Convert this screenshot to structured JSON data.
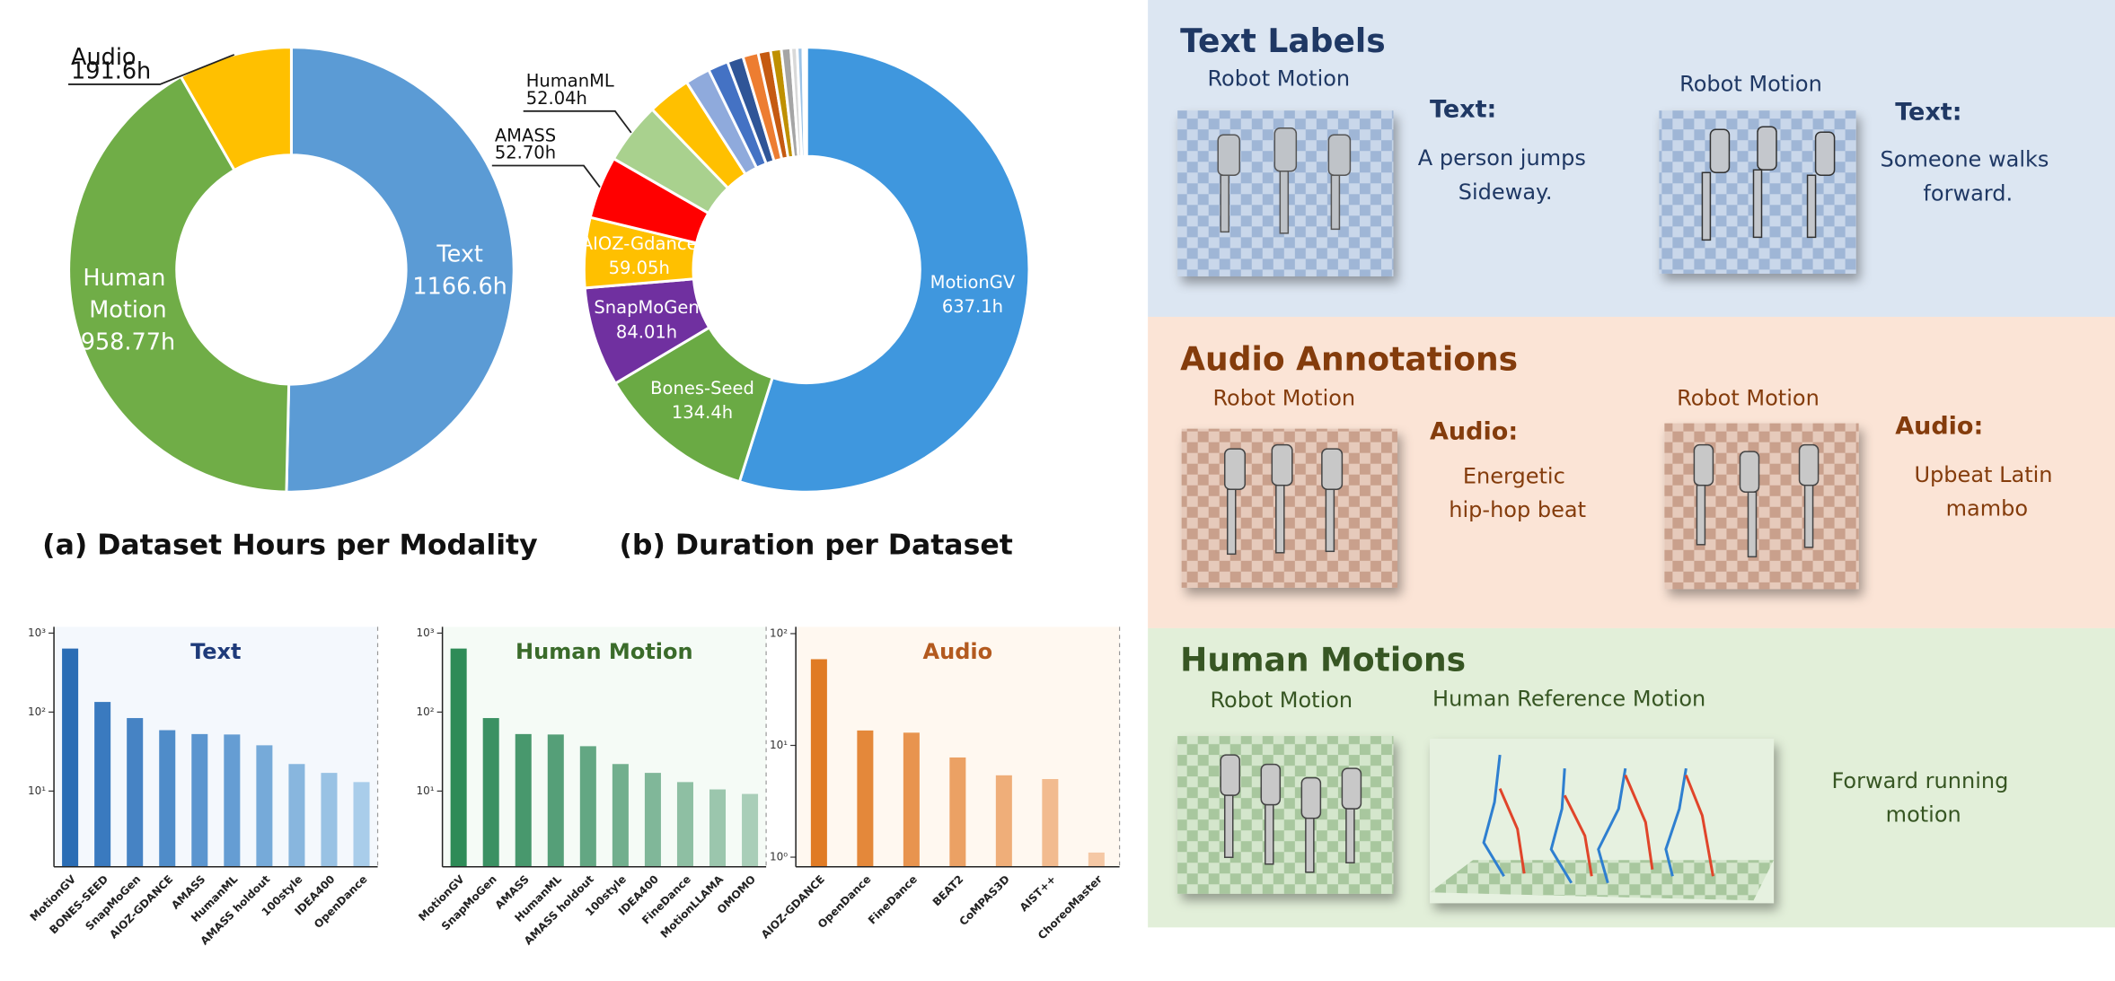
{
  "chart_data": [
    {
      "type": "donut",
      "title": "(a) Dataset Hours per Modality",
      "categories": [
        "Text",
        "Human Motion",
        "Audio"
      ],
      "values": [
        1166.6,
        958.77,
        191.6
      ],
      "value_labels": [
        "1166.6h",
        "958.77h",
        "191.6h"
      ],
      "colors": [
        "#5b9bd5",
        "#70ad47",
        "#ffc000"
      ]
    },
    {
      "type": "donut",
      "title": "(b) Duration per Dataset",
      "categories": [
        "MotionGV",
        "Bones-Seed",
        "SnapMoGen",
        "AIOZ-Gdance",
        "AMASS",
        "HumanML",
        null,
        null,
        null,
        null,
        null,
        null,
        null,
        null,
        null,
        null,
        null,
        null
      ],
      "values": [
        637.1,
        134.4,
        84.01,
        59.05,
        52.7,
        52.04,
        36.5,
        21,
        17,
        13.5,
        13,
        10.5,
        9,
        8,
        5.3,
        4.8,
        2,
        1.1
      ],
      "value_labels": [
        "637.1h",
        "134.4h",
        "84.01h",
        "59.05h",
        "52.70h",
        "52.04h",
        null,
        null,
        null,
        null,
        null,
        null,
        null,
        null,
        null,
        null,
        null,
        null
      ],
      "colors": [
        "#3f97de",
        "#6aaa44",
        "#7030a0",
        "#ffc000",
        "#ff0000",
        "#a9d18e",
        "#ffc000",
        "#8faadc",
        "#4472c4",
        "#2f5597",
        "#ed7d31",
        "#c55a11",
        "#bf9000",
        "#a5a5a5",
        "#d9d9d9",
        "#9dc3e6",
        "#1f4e79",
        "#548235"
      ]
    },
    {
      "type": "bar",
      "title": "Text",
      "log_scale": true,
      "title_color": "#1f3b7a",
      "background": "#f4f8fd",
      "categories": [
        "MotionGV",
        "BONES-SEED",
        "SnapMoGen",
        "AIOZ-GDANCE",
        "AMASS",
        "HumanML",
        "AMASS holdout",
        "100style",
        "IDEA400",
        "OpenDance"
      ],
      "values": [
        637.1,
        134.4,
        84.01,
        59.05,
        52.7,
        52.04,
        38,
        22,
        17,
        13
      ],
      "colors": [
        "#2a6db5",
        "#3a7abf",
        "#4683c4",
        "#4f8cc9",
        "#5b95cf",
        "#659dd3",
        "#76aad9",
        "#88b6de",
        "#99c2e4",
        "#a9cdea"
      ],
      "ylim": [
        1.1,
        1200
      ],
      "yticks": [
        {
          "value": 10,
          "label": "10¹"
        },
        {
          "value": 100,
          "label": "10²"
        },
        {
          "value": 1000,
          "label": "10³"
        }
      ]
    },
    {
      "type": "bar",
      "title": "Human Motion",
      "log_scale": true,
      "title_color": "#3a6b2a",
      "background": "#f5fbf6",
      "categories": [
        "MotionGV",
        "SnapMoGen",
        "AMASS",
        "HumanML",
        "AMASS holdout",
        "100style",
        "IDEA400",
        "FineDance",
        "MotionLLAMA",
        "OMOMO"
      ],
      "values": [
        637.1,
        84.01,
        52.7,
        52.04,
        37,
        22,
        17,
        13,
        10.5,
        9.2
      ],
      "colors": [
        "#2e8b57",
        "#3b9163",
        "#48986d",
        "#559f78",
        "#63a783",
        "#72af8e",
        "#80b799",
        "#8ebfa3",
        "#9bc6ad",
        "#a9ceb8"
      ],
      "ylim": [
        1.1,
        1200
      ],
      "yticks": [
        {
          "value": 10,
          "label": "10¹"
        },
        {
          "value": 100,
          "label": "10²"
        },
        {
          "value": 1000,
          "label": "10³"
        }
      ]
    },
    {
      "type": "bar",
      "title": "Audio",
      "log_scale": true,
      "title_color": "#b35a1f",
      "background": "#fff8f0",
      "categories": [
        "AIOZ-GDANCE",
        "OpenDance",
        "FineDance",
        "BEAT2",
        "CoMPAS3D",
        "AIST++",
        "ChoreoMaster"
      ],
      "values": [
        59.05,
        13.6,
        13,
        7.8,
        5.4,
        5.0,
        1.1
      ],
      "colors": [
        "#e07b24",
        "#e4883a",
        "#e8944f",
        "#eba164",
        "#efae79",
        "#f2bb8f",
        "#f5c8a5"
      ],
      "ylim": [
        0.82,
        115
      ],
      "yticks": [
        {
          "value": 1,
          "label": "10⁰"
        },
        {
          "value": 10,
          "label": "10¹"
        },
        {
          "value": 100,
          "label": "10²"
        }
      ]
    }
  ],
  "panels": [
    {
      "title": "Text Labels",
      "items": [
        {
          "image_label": "Robot Motion",
          "key": "Text:",
          "text": "A person jumps Sideway."
        },
        {
          "image_label": "Robot Motion",
          "key": "Text:",
          "text": "Someone walks forward."
        }
      ]
    },
    {
      "title": "Audio Annotations",
      "items": [
        {
          "image_label": "Robot Motion",
          "key": "Audio:",
          "text": "Energetic hip-hop beat"
        },
        {
          "image_label": "Robot Motion",
          "key": "Audio:",
          "text": "Upbeat Latin mambo"
        }
      ]
    },
    {
      "title": "Human Motions",
      "items": [
        {
          "image_label": "Robot Motion"
        },
        {
          "image_label": "Human Reference Motion",
          "text": "Forward running motion"
        }
      ]
    }
  ]
}
